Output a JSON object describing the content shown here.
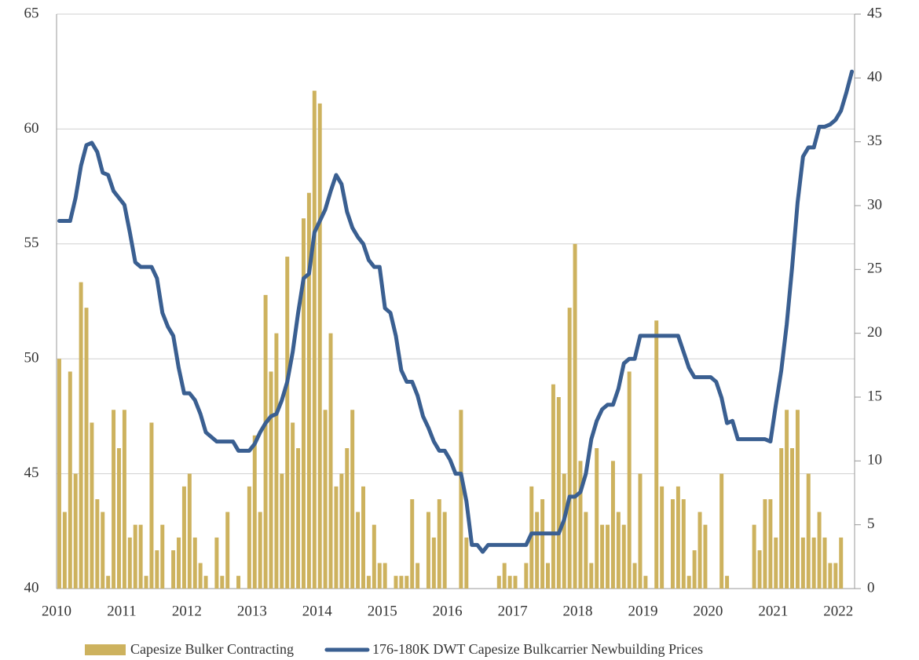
{
  "chart_data": {
    "type": "bar_line",
    "categories": [
      "2010",
      null,
      null,
      null,
      null,
      null,
      null,
      null,
      null,
      null,
      null,
      null,
      "2011",
      null,
      null,
      null,
      null,
      null,
      null,
      null,
      null,
      null,
      null,
      null,
      "2012",
      null,
      null,
      null,
      null,
      null,
      null,
      null,
      null,
      null,
      null,
      null,
      "2013",
      null,
      null,
      null,
      null,
      null,
      null,
      null,
      null,
      null,
      null,
      null,
      "2014",
      null,
      null,
      null,
      null,
      null,
      null,
      null,
      null,
      null,
      null,
      null,
      "2015",
      null,
      null,
      null,
      null,
      null,
      null,
      null,
      null,
      null,
      null,
      null,
      "2016",
      null,
      null,
      null,
      null,
      null,
      null,
      null,
      null,
      null,
      null,
      null,
      "2017",
      null,
      null,
      null,
      null,
      null,
      null,
      null,
      null,
      null,
      null,
      null,
      "2018",
      null,
      null,
      null,
      null,
      null,
      null,
      null,
      null,
      null,
      null,
      null,
      "2019",
      null,
      null,
      null,
      null,
      null,
      null,
      null,
      null,
      null,
      null,
      null,
      "2020",
      null,
      null,
      null,
      null,
      null,
      null,
      null,
      null,
      null,
      null,
      null,
      "2021",
      null,
      null,
      null,
      null,
      null,
      null,
      null,
      null,
      null,
      null,
      null,
      "2022",
      null,
      null
    ],
    "series": [
      {
        "name": "Capesize Bulker Contracting",
        "type": "bar",
        "axis": "y2",
        "color": "#cdb25e",
        "values": [
          18,
          6,
          17,
          9,
          24,
          22,
          13,
          7,
          6,
          1,
          14,
          11,
          14,
          4,
          5,
          5,
          1,
          13,
          3,
          5,
          0,
          3,
          4,
          8,
          9,
          4,
          2,
          1,
          0,
          4,
          1,
          6,
          0,
          1,
          0,
          8,
          12,
          6,
          23,
          17,
          20,
          9,
          26,
          13,
          11,
          29,
          31,
          39,
          38,
          14,
          20,
          8,
          9,
          11,
          14,
          6,
          8,
          1,
          5,
          2,
          2,
          0,
          1,
          1,
          1,
          7,
          2,
          0,
          6,
          4,
          7,
          6,
          0,
          0,
          14,
          4,
          0,
          0,
          0,
          0,
          0,
          1,
          2,
          1,
          1,
          0,
          2,
          8,
          6,
          7,
          2,
          16,
          15,
          9,
          22,
          27,
          10,
          6,
          2,
          11,
          5,
          5,
          10,
          6,
          5,
          17,
          2,
          9,
          1,
          0,
          21,
          8,
          0,
          7,
          8,
          7,
          1,
          3,
          6,
          5,
          0,
          0,
          9,
          1,
          0,
          0,
          0,
          0,
          5,
          3,
          7,
          7,
          4,
          11,
          14,
          11,
          14,
          4,
          9,
          4,
          6,
          4,
          2,
          2,
          4,
          0,
          0
        ]
      },
      {
        "name": "176-180K DWT Capesize Bulkcarrier Newbuilding Prices",
        "type": "line",
        "axis": "y",
        "color": "#3a5f91",
        "values": [
          56,
          56,
          56,
          57,
          58.4,
          59.3,
          59.4,
          59,
          58.1,
          58,
          57.3,
          57,
          56.7,
          55.5,
          54.2,
          54,
          54,
          54,
          53.5,
          52,
          51.4,
          51,
          49.6,
          48.5,
          48.5,
          48.2,
          47.6,
          46.8,
          46.6,
          46.4,
          46.4,
          46.4,
          46.4,
          46,
          46,
          46,
          46.3,
          46.8,
          47.2,
          47.5,
          47.6,
          48.2,
          49,
          50.3,
          52,
          53.5,
          53.7,
          55.5,
          56,
          56.5,
          57.3,
          58,
          57.6,
          56.4,
          55.7,
          55.3,
          55,
          54.3,
          54,
          54,
          52.2,
          52,
          51,
          49.5,
          49,
          49,
          48.4,
          47.5,
          47,
          46.4,
          46,
          46,
          45.6,
          45,
          45,
          43.8,
          41.9,
          41.9,
          41.6,
          41.9,
          41.9,
          41.9,
          41.9,
          41.9,
          41.9,
          41.9,
          41.9,
          42.4,
          42.4,
          42.4,
          42.4,
          42.4,
          42.4,
          43,
          44,
          44,
          44.2,
          45,
          46.5,
          47.3,
          47.8,
          48,
          48,
          48.7,
          49.8,
          50,
          50,
          51,
          51,
          51,
          51,
          51,
          51,
          51,
          51,
          50.3,
          49.6,
          49.2,
          49.2,
          49.2,
          49.2,
          49,
          48.3,
          47.2,
          47.3,
          46.5,
          46.5,
          46.5,
          46.5,
          46.5,
          46.5,
          46.4,
          48,
          49.5,
          51.5,
          54,
          56.8,
          58.8,
          59.2,
          59.2,
          60.1,
          60.1,
          60.2,
          60.4,
          60.8,
          61.6,
          62.5
        ]
      }
    ],
    "ylim": [
      40,
      65
    ],
    "yticks": [
      40,
      45,
      50,
      55,
      60,
      65
    ],
    "y2lim": [
      0,
      45
    ],
    "y2ticks": [
      0,
      5,
      10,
      15,
      20,
      25,
      30,
      35,
      40,
      45
    ],
    "grid": true,
    "legend": "bottom"
  }
}
